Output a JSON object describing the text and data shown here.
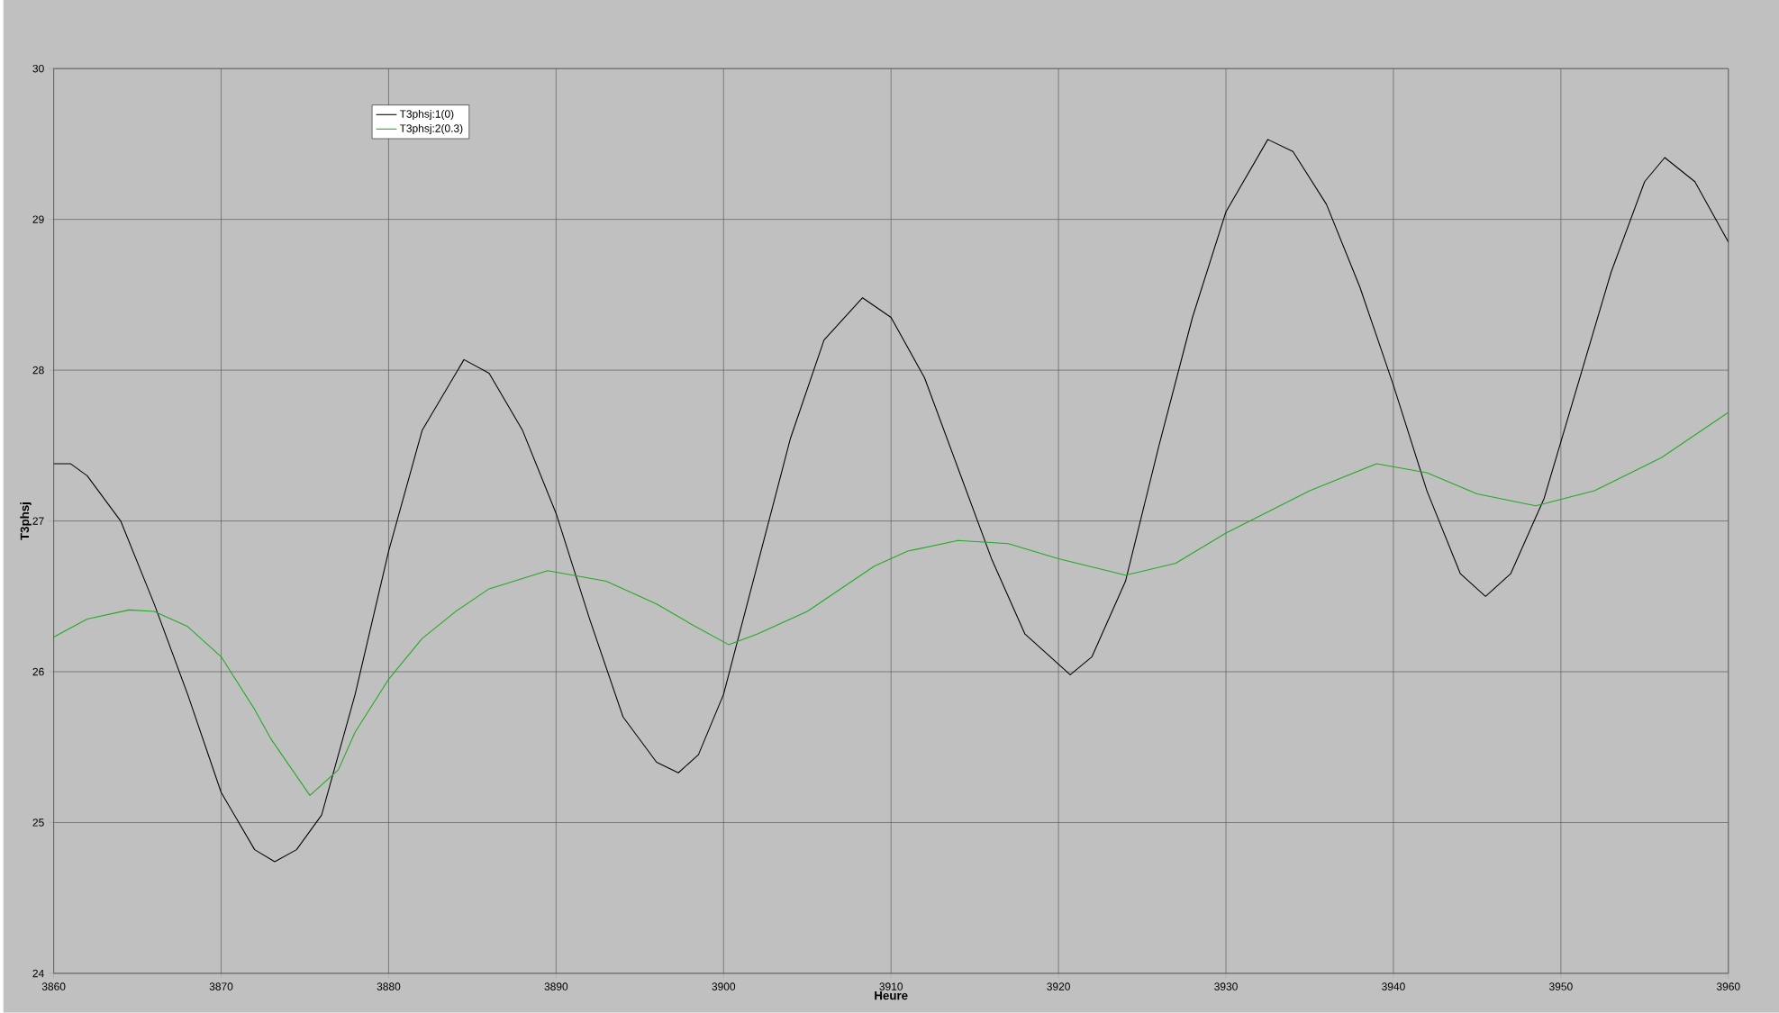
{
  "chart_data": {
    "type": "line",
    "xlabel": "Heure",
    "ylabel": "T3phsj",
    "xlim": [
      3860,
      3960
    ],
    "ylim": [
      24,
      30
    ],
    "xticks": [
      3860,
      3870,
      3880,
      3890,
      3900,
      3910,
      3920,
      3930,
      3940,
      3950,
      3960
    ],
    "yticks": [
      24,
      25,
      26,
      27,
      28,
      29,
      30
    ],
    "grid": true,
    "legend": "top left",
    "marker": "none",
    "line_style": "solid",
    "series": [
      {
        "name": "T3phsj:1(0)",
        "color": "#000000",
        "x": [
          3860,
          3861,
          3862,
          3864,
          3866,
          3868,
          3870,
          3872,
          3873.2,
          3874.5,
          3876,
          3878,
          3880,
          3882,
          3884.5,
          3886,
          3888,
          3890,
          3892,
          3894,
          3896,
          3897.3,
          3898.5,
          3900,
          3902,
          3904,
          3906,
          3908.3,
          3910,
          3912,
          3914,
          3916,
          3918,
          3920.7,
          3922,
          3924,
          3926,
          3928,
          3930,
          3932.5,
          3934,
          3936,
          3938,
          3940,
          3942,
          3944,
          3945.5,
          3947,
          3949,
          3951,
          3953,
          3955,
          3956.2,
          3958,
          3960
        ],
        "values": [
          27.38,
          27.38,
          27.3,
          27.0,
          26.45,
          25.85,
          25.2,
          24.82,
          24.74,
          24.82,
          25.05,
          25.85,
          26.8,
          27.6,
          28.07,
          27.98,
          27.6,
          27.05,
          26.35,
          25.7,
          25.4,
          25.33,
          25.45,
          25.85,
          26.7,
          27.55,
          28.2,
          28.48,
          28.35,
          27.95,
          27.35,
          26.75,
          26.25,
          25.98,
          26.1,
          26.6,
          27.5,
          28.35,
          29.05,
          29.53,
          29.45,
          29.1,
          28.55,
          27.9,
          27.2,
          26.65,
          26.5,
          26.65,
          27.15,
          27.9,
          28.65,
          29.25,
          29.41,
          29.25,
          28.85
        ]
      },
      {
        "name": "T3phsj:2(0.3)",
        "color": "#22aa22",
        "x": [
          3860,
          3862,
          3864.5,
          3866,
          3868,
          3870,
          3872,
          3873,
          3875.3,
          3877,
          3878,
          3880,
          3882,
          3884,
          3886,
          3889.5,
          3893,
          3896,
          3898,
          3900.3,
          3902,
          3905,
          3909,
          3911,
          3914,
          3917,
          3920,
          3924,
          3927,
          3930,
          3935,
          3939,
          3942,
          3945,
          3948.5,
          3952,
          3956,
          3960
        ],
        "values": [
          26.23,
          26.35,
          26.41,
          26.4,
          26.3,
          26.1,
          25.75,
          25.55,
          25.18,
          25.35,
          25.6,
          25.95,
          26.22,
          26.4,
          26.55,
          26.67,
          26.6,
          26.45,
          26.32,
          26.18,
          26.25,
          26.4,
          26.7,
          26.8,
          26.87,
          26.85,
          26.75,
          26.64,
          26.72,
          26.92,
          27.2,
          27.38,
          27.32,
          27.18,
          27.1,
          27.2,
          27.42,
          27.72
        ]
      }
    ]
  }
}
